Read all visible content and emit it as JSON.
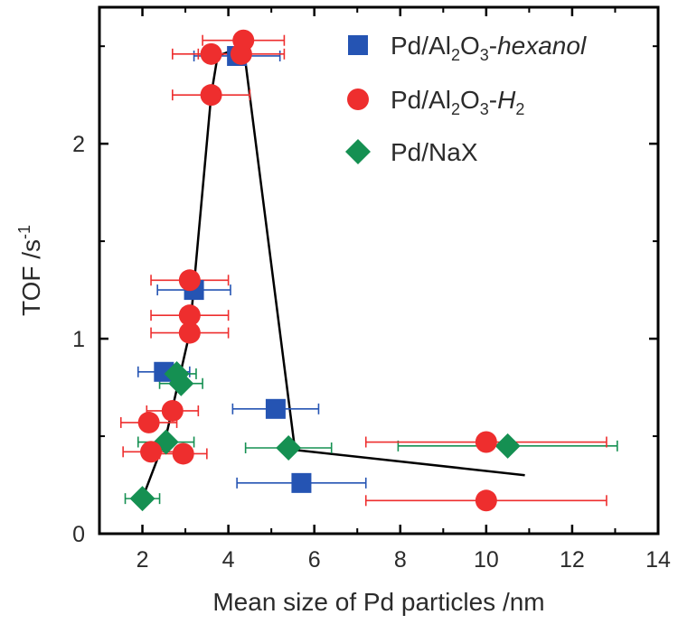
{
  "chart_data": {
    "type": "scatter",
    "title": "",
    "xlabel": "Mean size of Pd particles /nm",
    "ylabel": {
      "base": "TOF /s",
      "superscript": "-1"
    },
    "xlim": [
      1,
      14
    ],
    "ylim": [
      0,
      2.7
    ],
    "xticks": [
      2,
      4,
      6,
      8,
      10,
      12,
      14
    ],
    "yticks": [
      0,
      1,
      2
    ],
    "legend_position": "top-right",
    "colors": {
      "hexanol": "#2554b3",
      "h2": "#ee2e2e",
      "nax": "#159052",
      "trend": "#000000"
    },
    "series": [
      {
        "name": "Pd/Al2O3-hexanol",
        "legend": [
          {
            "t": "Pd/Al",
            "s": ""
          },
          {
            "t": "2",
            "s": "sub"
          },
          {
            "t": "O",
            "s": ""
          },
          {
            "t": "3",
            "s": "sub"
          },
          {
            "t": "-",
            "s": ""
          },
          {
            "t": "hexanol",
            "s": "italic"
          }
        ],
        "marker": "square",
        "color": "#2554b3",
        "points": [
          {
            "x": 2.5,
            "y": 0.83,
            "xerr": 0.6
          },
          {
            "x": 3.2,
            "y": 1.25,
            "xerr": 0.85
          },
          {
            "x": 4.2,
            "y": 2.45,
            "xerr": 1.0
          },
          {
            "x": 5.1,
            "y": 0.64,
            "xerr": 1.0
          },
          {
            "x": 5.7,
            "y": 0.26,
            "xerr": 1.5
          }
        ]
      },
      {
        "name": "Pd/Al2O3-H2",
        "legend": [
          {
            "t": "Pd/Al",
            "s": ""
          },
          {
            "t": "2",
            "s": "sub"
          },
          {
            "t": "O",
            "s": ""
          },
          {
            "t": "3",
            "s": "sub"
          },
          {
            "t": "-",
            "s": ""
          },
          {
            "t": "H",
            "s": "italic"
          },
          {
            "t": "2",
            "s": "sub"
          }
        ],
        "marker": "circle",
        "color": "#ee2e2e",
        "points": [
          {
            "x": 2.15,
            "y": 0.57,
            "xerr": 0.65
          },
          {
            "x": 2.2,
            "y": 0.42,
            "xerr": 0.65
          },
          {
            "x": 2.7,
            "y": 0.63,
            "xerr": 0.6
          },
          {
            "x": 2.95,
            "y": 0.41,
            "xerr": 0.55
          },
          {
            "x": 3.1,
            "y": 1.03,
            "xerr": 0.9
          },
          {
            "x": 3.1,
            "y": 1.12,
            "xerr": 0.9
          },
          {
            "x": 3.1,
            "y": 1.3,
            "xerr": 0.9
          },
          {
            "x": 3.6,
            "y": 2.25,
            "xerr": 0.9
          },
          {
            "x": 3.6,
            "y": 2.46,
            "xerr": 0.9
          },
          {
            "x": 4.3,
            "y": 2.46,
            "xerr": 1.0
          },
          {
            "x": 4.35,
            "y": 2.53,
            "xerr": 0.95
          },
          {
            "x": 10.0,
            "y": 0.47,
            "xerr": 2.8
          },
          {
            "x": 10.0,
            "y": 0.17,
            "xerr": 2.8
          }
        ]
      },
      {
        "name": "Pd/NaX",
        "legend": [
          {
            "t": "Pd/NaX",
            "s": ""
          }
        ],
        "marker": "diamond",
        "color": "#159052",
        "points": [
          {
            "x": 2.0,
            "y": 0.18,
            "xerr": 0.4
          },
          {
            "x": 2.55,
            "y": 0.47,
            "xerr": 0.65
          },
          {
            "x": 2.8,
            "y": 0.82,
            "xerr": 0.45
          },
          {
            "x": 2.9,
            "y": 0.77,
            "xerr": 0.5
          },
          {
            "x": 5.4,
            "y": 0.44,
            "xerr": 1.0
          },
          {
            "x": 10.5,
            "y": 0.45,
            "xerr": 2.55
          }
        ]
      }
    ],
    "trend_line": [
      {
        "x": 2.0,
        "y": 0.18
      },
      {
        "x": 2.55,
        "y": 0.5
      },
      {
        "x": 3.1,
        "y": 1.03
      },
      {
        "x": 3.6,
        "y": 2.25
      },
      {
        "x": 3.75,
        "y": 2.45
      },
      {
        "x": 4.35,
        "y": 2.5
      },
      {
        "x": 5.55,
        "y": 0.43
      },
      {
        "x": 10.9,
        "y": 0.3
      }
    ]
  }
}
